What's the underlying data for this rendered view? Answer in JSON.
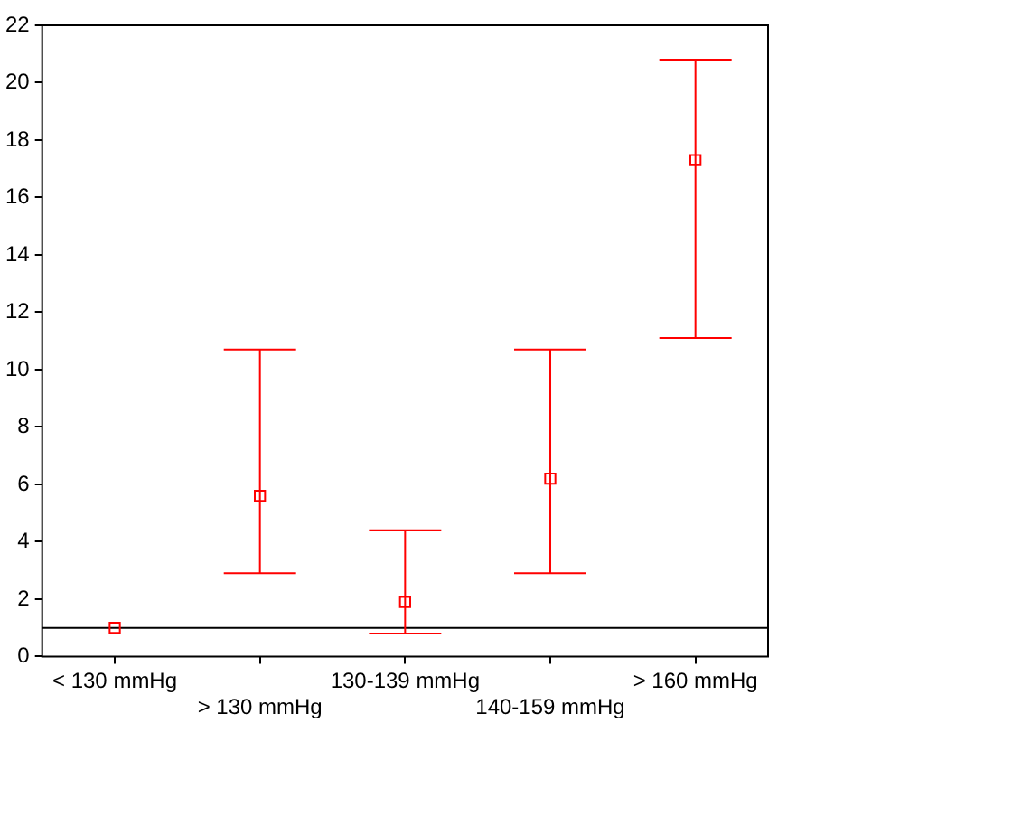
{
  "chart_data": {
    "type": "scatter",
    "categories": [
      "< 130 mmHg",
      "> 130 mmHg",
      "130-139 mmHg",
      "140-159 mmHg",
      "> 160 mmHg"
    ],
    "series": [
      {
        "color": "#ff0000",
        "values": [
          1,
          5.6,
          1.9,
          6.2,
          17.3
        ],
        "errors": [
          null,
          [
            2.9,
            10.7
          ],
          [
            0.8,
            4.4
          ],
          [
            2.9,
            10.7
          ],
          [
            11.1,
            20.8
          ]
        ]
      }
    ],
    "marker": "square",
    "ylim": [
      0,
      22
    ],
    "yticks": [
      0,
      2,
      4,
      6,
      8,
      10,
      12,
      14,
      16,
      18,
      20,
      22
    ],
    "ref_lines": [
      {
        "axis": "y",
        "value": 1,
        "color": "#000000"
      }
    ],
    "grid": false,
    "legend": false
  }
}
